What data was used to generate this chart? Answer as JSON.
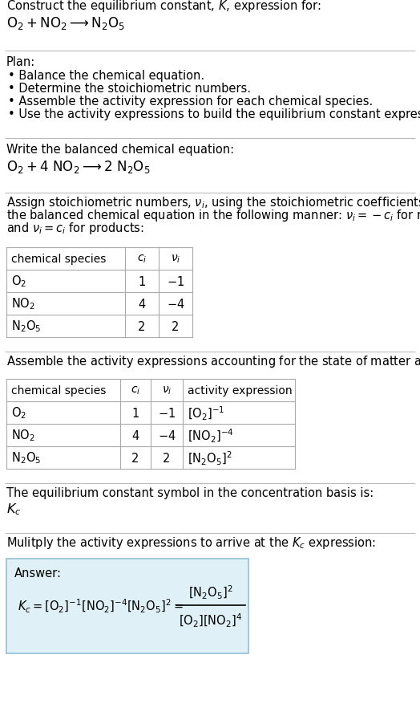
{
  "bg_color": "#ffffff",
  "text_color": "#000000",
  "title_line1": "Construct the equilibrium constant, $K$, expression for:",
  "title_line2_parts": [
    "$\\mathrm{O_2}$",
    " +",
    "$\\mathrm{NO_2}$",
    "  $\\longrightarrow$  ",
    "$\\mathrm{N_2O_5}$"
  ],
  "plan_header": "Plan:",
  "plan_bullets": [
    "• Balance the chemical equation.",
    "• Determine the stoichiometric numbers.",
    "• Assemble the activity expression for each chemical species.",
    "• Use the activity expressions to build the equilibrium constant expression."
  ],
  "balanced_header": "Write the balanced chemical equation:",
  "assign_text": [
    "Assign stoichiometric numbers, $\\nu_i$, using the stoichiometric coefficients, $c_i$, from",
    "the balanced chemical equation in the following manner: $\\nu_i = -c_i$ for reactants",
    "and $\\nu_i = c_i$ for products:"
  ],
  "table1_headers": [
    "chemical species",
    "$c_i$",
    "$\\nu_i$"
  ],
  "table1_rows": [
    [
      "$\\mathrm{O_2}$",
      "1",
      "$-1$"
    ],
    [
      "$\\mathrm{NO_2}$",
      "4",
      "$-4$"
    ],
    [
      "$\\mathrm{N_2O_5}$",
      "2",
      "2"
    ]
  ],
  "assemble_text": "Assemble the activity expressions accounting for the state of matter and $\\nu_i$:",
  "table2_headers": [
    "chemical species",
    "$c_i$",
    "$\\nu_i$",
    "activity expression"
  ],
  "table2_rows": [
    [
      "$\\mathrm{O_2}$",
      "1",
      "$-1$",
      "$[\\mathrm{O_2}]^{-1}$"
    ],
    [
      "$\\mathrm{NO_2}$",
      "4",
      "$-4$",
      "$[\\mathrm{NO_2}]^{-4}$"
    ],
    [
      "$\\mathrm{N_2O_5}$",
      "2",
      "2",
      "$[\\mathrm{N_2O_5}]^{2}$"
    ]
  ],
  "kc_text": "The equilibrium constant symbol in the concentration basis is:",
  "kc_symbol": "$K_c$",
  "multiply_text": "Mulitply the activity expressions to arrive at the $K_c$ expression:",
  "answer_box_color": "#dff0f7",
  "answer_box_border": "#90c0d8",
  "answer_label": "Answer:",
  "fs": 10.5
}
